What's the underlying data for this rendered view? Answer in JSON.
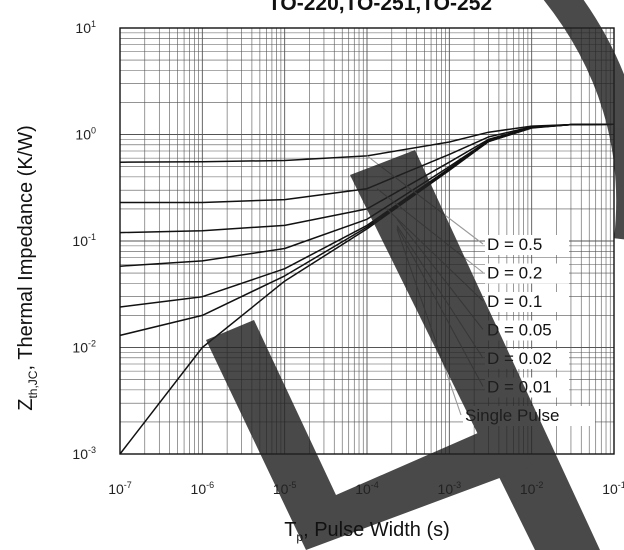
{
  "chart_data": {
    "type": "line",
    "title": "TO-220,TO-251,TO-252",
    "xlabel": {
      "main": "T",
      "sub": "p",
      "rest": ", Pulse Width (s)"
    },
    "ylabel": {
      "main": "Z",
      "sub": "th,JC",
      "rest": ", Thermal Impedance (K/W)"
    },
    "x_scale": "log",
    "y_scale": "log",
    "xlim": [
      1e-07,
      0.1
    ],
    "ylim": [
      0.001,
      10
    ],
    "x_ticks": [
      {
        "value": 1e-07,
        "base": "10",
        "exp": "-7"
      },
      {
        "value": 1e-06,
        "base": "10",
        "exp": "-6"
      },
      {
        "value": 1e-05,
        "base": "10",
        "exp": "-5"
      },
      {
        "value": 0.0001,
        "base": "10",
        "exp": "-4"
      },
      {
        "value": 0.001,
        "base": "10",
        "exp": "-3"
      },
      {
        "value": 0.01,
        "base": "10",
        "exp": "-2"
      },
      {
        "value": 0.1,
        "base": "10",
        "exp": "-1"
      }
    ],
    "y_ticks": [
      {
        "value": 10,
        "base": "10",
        "exp": "1"
      },
      {
        "value": 1,
        "base": "10",
        "exp": "0"
      },
      {
        "value": 0.1,
        "base": "10",
        "exp": "-1"
      },
      {
        "value": 0.01,
        "base": "10",
        "exp": "-2"
      },
      {
        "value": 0.001,
        "base": "10",
        "exp": "-3"
      }
    ],
    "grid": true,
    "legend_position": "bottom-right",
    "series": [
      {
        "name": "D = 0.5",
        "x": [
          1e-07,
          1e-06,
          1e-05,
          0.0001,
          0.001,
          0.003,
          0.01,
          0.03,
          0.1
        ],
        "y": [
          0.55,
          0.555,
          0.57,
          0.63,
          0.85,
          1.05,
          1.2,
          1.24,
          1.25
        ]
      },
      {
        "name": "D = 0.2",
        "x": [
          1e-07,
          1e-06,
          1e-05,
          0.0001,
          0.001,
          0.003,
          0.01,
          0.03,
          0.1
        ],
        "y": [
          0.23,
          0.23,
          0.245,
          0.31,
          0.65,
          0.95,
          1.18,
          1.24,
          1.25
        ]
      },
      {
        "name": "D = 0.1",
        "x": [
          1e-07,
          1e-06,
          1e-05,
          0.0001,
          0.001,
          0.003,
          0.01,
          0.03,
          0.1
        ],
        "y": [
          0.12,
          0.125,
          0.14,
          0.2,
          0.55,
          0.9,
          1.17,
          1.24,
          1.25
        ]
      },
      {
        "name": "D = 0.05",
        "x": [
          1e-07,
          1e-06,
          1e-05,
          0.0001,
          0.001,
          0.003,
          0.01,
          0.03,
          0.1
        ],
        "y": [
          0.058,
          0.065,
          0.085,
          0.16,
          0.5,
          0.88,
          1.16,
          1.24,
          1.25
        ]
      },
      {
        "name": "D = 0.02",
        "x": [
          1e-07,
          1e-06,
          1e-05,
          0.0001,
          0.001,
          0.003,
          0.01,
          0.03,
          0.1
        ],
        "y": [
          0.024,
          0.03,
          0.055,
          0.14,
          0.48,
          0.87,
          1.16,
          1.24,
          1.25
        ]
      },
      {
        "name": "D = 0.01",
        "x": [
          1e-07,
          1e-06,
          1e-05,
          0.0001,
          0.001,
          0.003,
          0.01,
          0.03,
          0.1
        ],
        "y": [
          0.013,
          0.02,
          0.047,
          0.135,
          0.47,
          0.86,
          1.16,
          1.24,
          1.25
        ]
      },
      {
        "name": "Single Pulse",
        "x": [
          1e-07,
          1e-06,
          1e-05,
          0.0001,
          0.001,
          0.003,
          0.01,
          0.03,
          0.1
        ],
        "y": [
          0.001,
          0.01,
          0.042,
          0.13,
          0.46,
          0.86,
          1.15,
          1.24,
          1.25
        ]
      }
    ],
    "line_color": "#111111",
    "leader_color": "#9a9a9a",
    "grid_color": "#555555",
    "watermark_color": "#222222"
  }
}
